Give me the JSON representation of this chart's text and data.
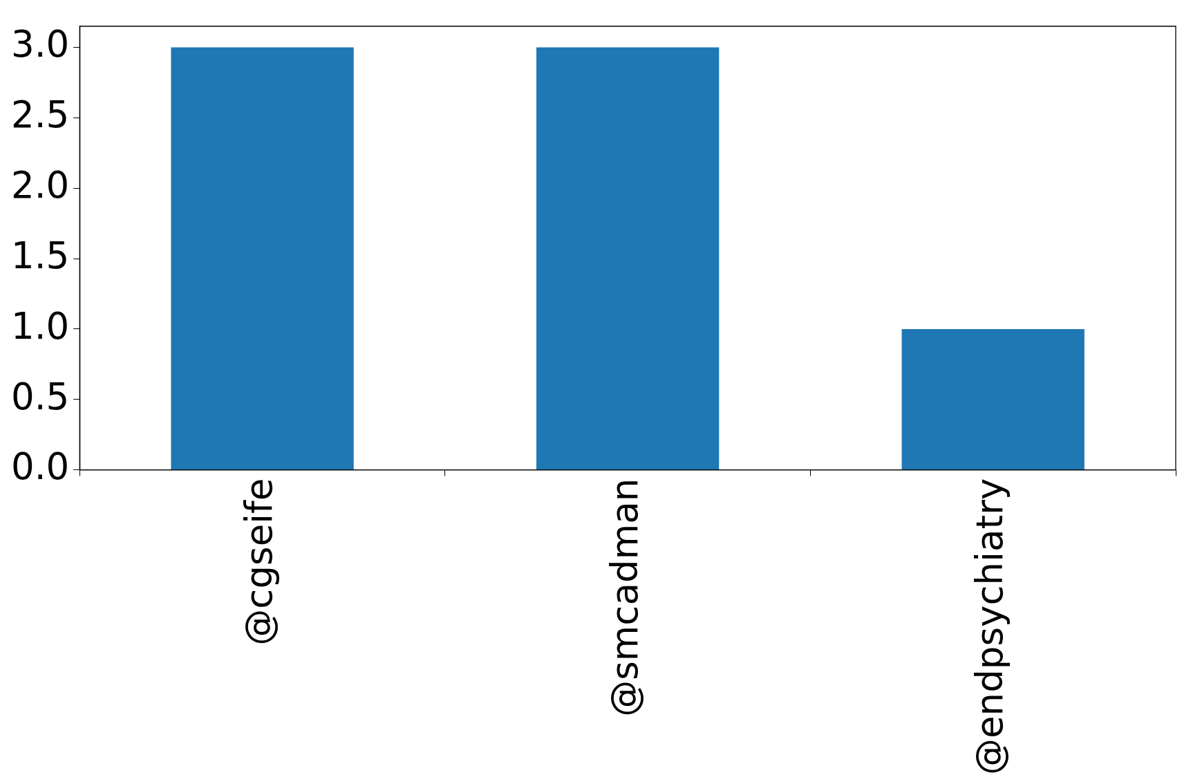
{
  "chart_data": {
    "type": "bar",
    "categories": [
      "@cgseife",
      "@smcadman",
      "@endpsychiatry"
    ],
    "values": [
      3,
      3,
      1
    ],
    "color": "#1f77b4",
    "ylim": [
      0,
      3.15
    ],
    "yticks": [
      {
        "value": 0,
        "label": "0.0"
      },
      {
        "value": 0.5,
        "label": "0.5"
      },
      {
        "value": 1,
        "label": "1.0"
      },
      {
        "value": 1.5,
        "label": "1.5"
      },
      {
        "value": 2,
        "label": "2.0"
      },
      {
        "value": 2.5,
        "label": "2.5"
      },
      {
        "value": 3,
        "label": "3.0"
      }
    ],
    "grid": false,
    "legend": false
  }
}
